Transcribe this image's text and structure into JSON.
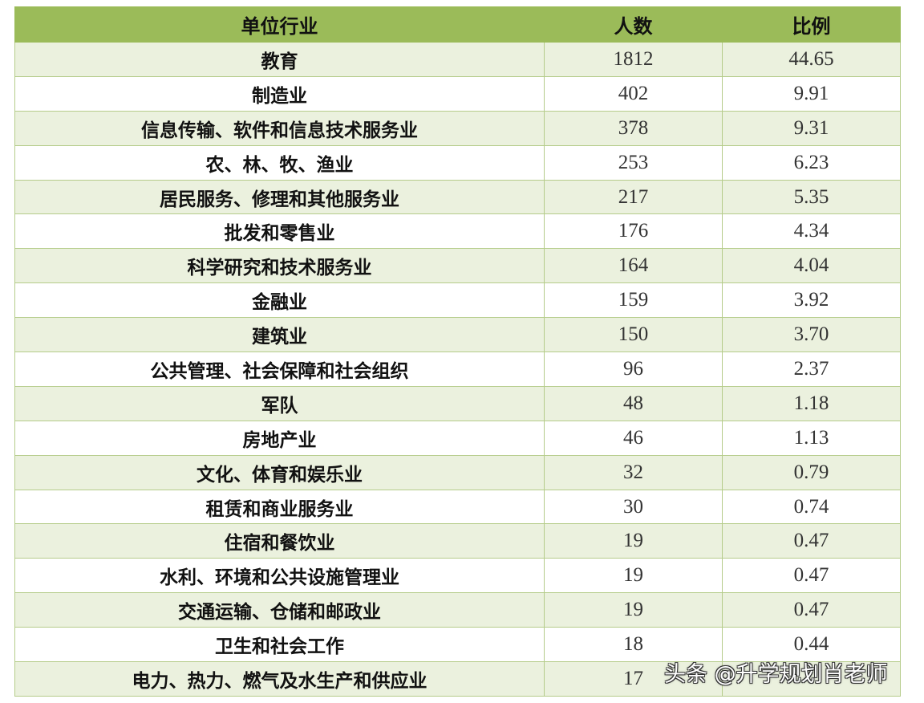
{
  "header": {
    "industry": "单位行业",
    "count": "人数",
    "ratio": "比例"
  },
  "rows": [
    {
      "industry": "教育",
      "count": "1812",
      "ratio": "44.65"
    },
    {
      "industry": "制造业",
      "count": "402",
      "ratio": "9.91"
    },
    {
      "industry": "信息传输、软件和信息技术服务业",
      "count": "378",
      "ratio": "9.31"
    },
    {
      "industry": "农、林、牧、渔业",
      "count": "253",
      "ratio": "6.23"
    },
    {
      "industry": "居民服务、修理和其他服务业",
      "count": "217",
      "ratio": "5.35"
    },
    {
      "industry": "批发和零售业",
      "count": "176",
      "ratio": "4.34"
    },
    {
      "industry": "科学研究和技术服务业",
      "count": "164",
      "ratio": "4.04"
    },
    {
      "industry": "金融业",
      "count": "159",
      "ratio": "3.92"
    },
    {
      "industry": "建筑业",
      "count": "150",
      "ratio": "3.70"
    },
    {
      "industry": "公共管理、社会保障和社会组织",
      "count": "96",
      "ratio": "2.37"
    },
    {
      "industry": "军队",
      "count": "48",
      "ratio": "1.18"
    },
    {
      "industry": "房地产业",
      "count": "46",
      "ratio": "1.13"
    },
    {
      "industry": "文化、体育和娱乐业",
      "count": "32",
      "ratio": "0.79"
    },
    {
      "industry": "租赁和商业服务业",
      "count": "30",
      "ratio": "0.74"
    },
    {
      "industry": "住宿和餐饮业",
      "count": "19",
      "ratio": "0.47"
    },
    {
      "industry": "水利、环境和公共设施管理业",
      "count": "19",
      "ratio": "0.47"
    },
    {
      "industry": "交通运输、仓储和邮政业",
      "count": "19",
      "ratio": "0.47"
    },
    {
      "industry": "卫生和社会工作",
      "count": "18",
      "ratio": "0.44"
    },
    {
      "industry": "电力、热力、燃气及水生产和供应业",
      "count": "17",
      "ratio": ""
    }
  ],
  "watermark": "头条 @升学规划肖老师",
  "colors": {
    "header": "#9bbb59",
    "stripe": "#ebf1de",
    "border": "#b5cc8a"
  }
}
